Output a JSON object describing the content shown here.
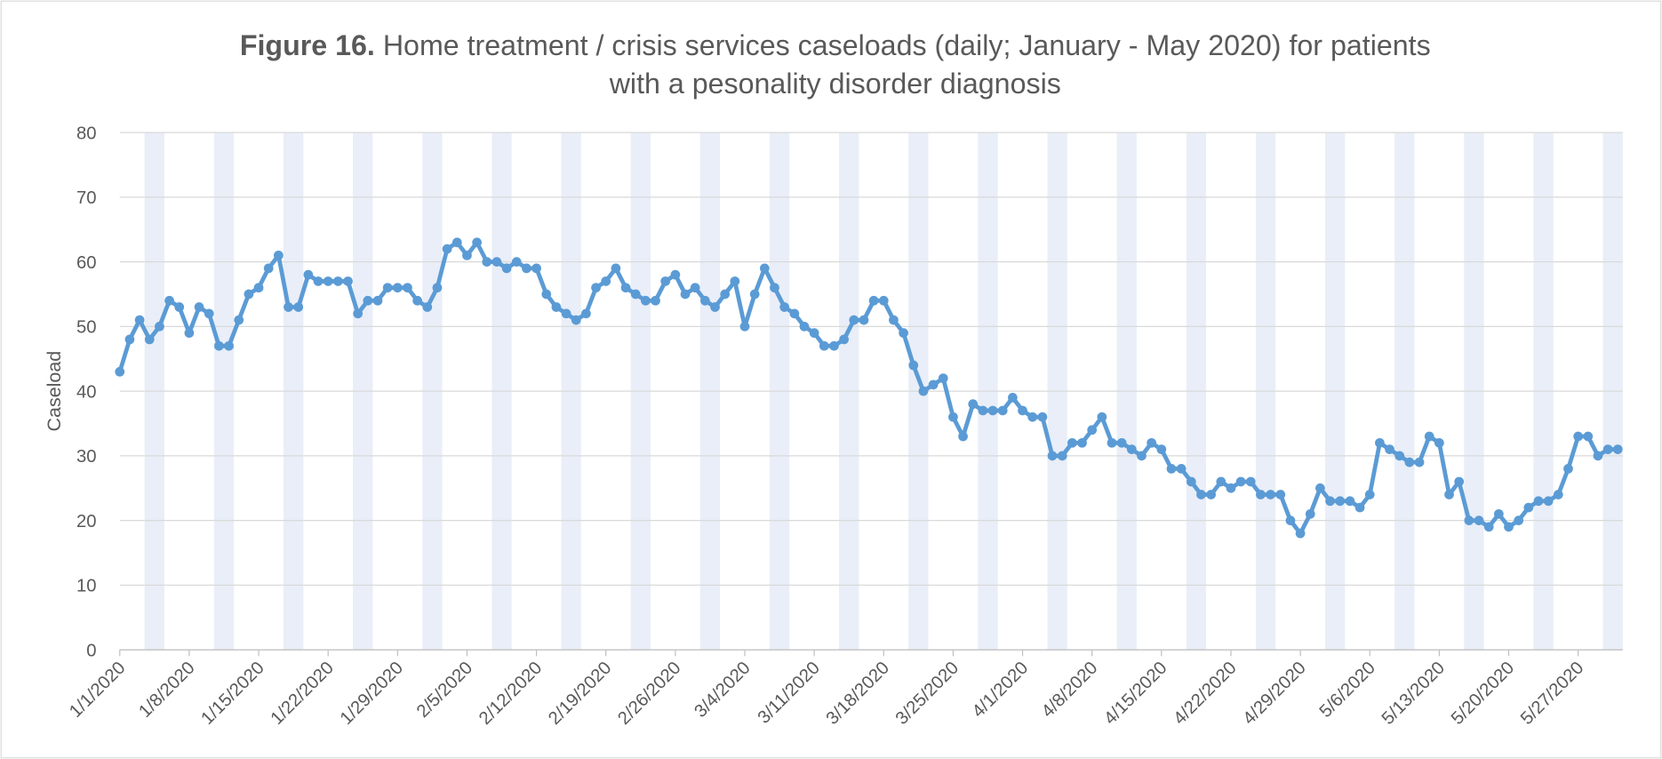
{
  "chart_data": {
    "type": "line",
    "title_bold": "Figure 16.",
    "title": "Home treatment / crisis services caseloads (daily; January - May 2020) for patients",
    "title_line2": "with a pesonality disorder diagnosis",
    "y_label": "Caseload",
    "color": "#5b9bd5",
    "band_color": "#e9eef8",
    "grid": true,
    "ylim": [
      0,
      80
    ],
    "yticks": [
      0,
      10,
      20,
      30,
      40,
      50,
      60,
      70,
      80
    ],
    "categories": [
      "1/1/2020",
      null,
      null,
      null,
      null,
      null,
      null,
      "1/8/2020",
      null,
      null,
      null,
      null,
      null,
      null,
      "1/15/2020",
      null,
      null,
      null,
      null,
      null,
      null,
      "1/22/2020",
      null,
      null,
      null,
      null,
      null,
      null,
      "1/29/2020",
      null,
      null,
      null,
      null,
      null,
      null,
      "2/5/2020",
      null,
      null,
      null,
      null,
      null,
      null,
      "2/12/2020",
      null,
      null,
      null,
      null,
      null,
      null,
      "2/19/2020",
      null,
      null,
      null,
      null,
      null,
      null,
      "2/26/2020",
      null,
      null,
      null,
      null,
      null,
      null,
      "3/4/2020",
      null,
      null,
      null,
      null,
      null,
      null,
      "3/11/2020",
      null,
      null,
      null,
      null,
      null,
      null,
      "3/18/2020",
      null,
      null,
      null,
      null,
      null,
      null,
      "3/25/2020",
      null,
      null,
      null,
      null,
      null,
      null,
      "4/1/2020",
      null,
      null,
      null,
      null,
      null,
      null,
      "4/8/2020",
      null,
      null,
      null,
      null,
      null,
      null,
      "4/15/2020",
      null,
      null,
      null,
      null,
      null,
      null,
      "4/22/2020",
      null,
      null,
      null,
      null,
      null,
      null,
      "4/29/2020",
      null,
      null,
      null,
      null,
      null,
      null,
      "5/6/2020",
      null,
      null,
      null,
      null,
      null,
      null,
      "5/13/2020",
      null,
      null,
      null,
      null,
      null,
      null,
      "5/20/2020",
      null,
      null,
      null,
      null,
      null,
      null,
      "5/27/2020",
      null,
      null,
      null,
      null
    ],
    "values": [
      43,
      48,
      51,
      48,
      50,
      54,
      53,
      49,
      53,
      52,
      47,
      47,
      51,
      55,
      56,
      59,
      61,
      53,
      53,
      58,
      57,
      57,
      57,
      57,
      52,
      54,
      54,
      56,
      56,
      56,
      54,
      53,
      56,
      62,
      63,
      61,
      63,
      60,
      60,
      59,
      60,
      59,
      59,
      55,
      53,
      52,
      51,
      52,
      56,
      57,
      59,
      56,
      55,
      54,
      54,
      57,
      58,
      55,
      56,
      54,
      53,
      55,
      57,
      50,
      55,
      59,
      56,
      53,
      52,
      50,
      49,
      47,
      47,
      48,
      51,
      51,
      54,
      54,
      51,
      49,
      44,
      40,
      41,
      42,
      36,
      33,
      38,
      37,
      37,
      37,
      39,
      37,
      36,
      36,
      30,
      30,
      32,
      32,
      34,
      36,
      32,
      32,
      31,
      30,
      32,
      31,
      28,
      28,
      26,
      24,
      24,
      26,
      25,
      26,
      26,
      24,
      24,
      24,
      20,
      18,
      21,
      25,
      23,
      23,
      23,
      22,
      24,
      32,
      31,
      30,
      29,
      29,
      33,
      32,
      24,
      26,
      20,
      20,
      19,
      21,
      19,
      20,
      22,
      23,
      23,
      24,
      28,
      33,
      33,
      30,
      31,
      31
    ]
  }
}
